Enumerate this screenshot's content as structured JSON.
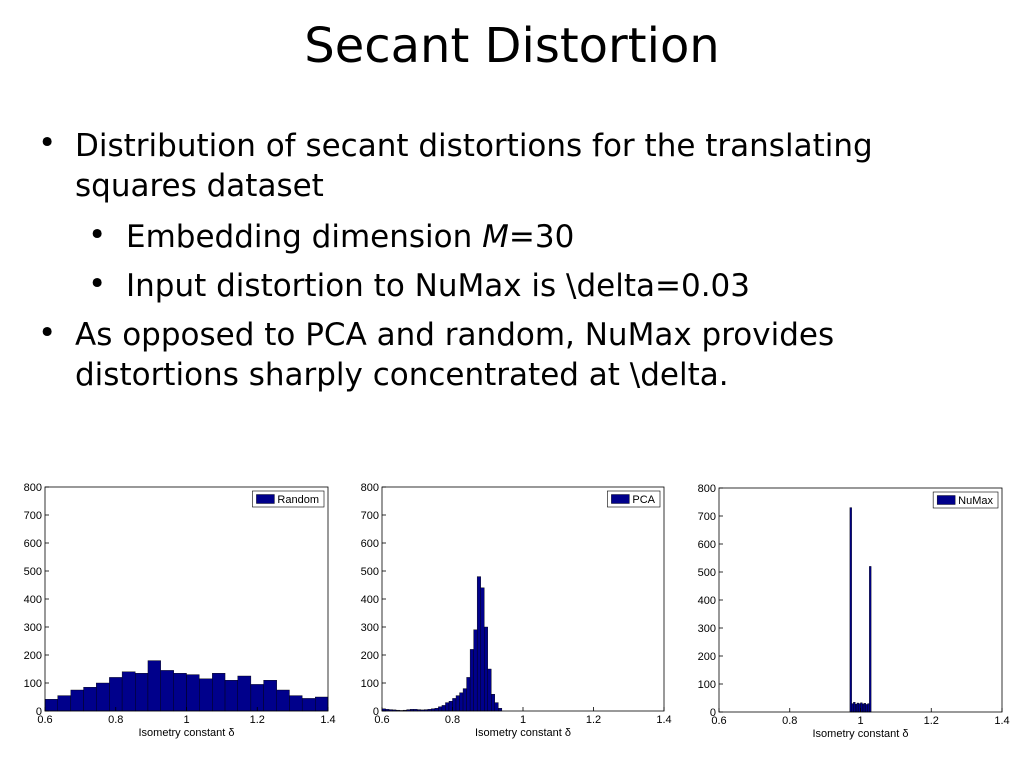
{
  "title": "Secant Distortion",
  "bullets": [
    {
      "text": "Distribution of secant distortions for the translating squares dataset",
      "sub": [
        {
          "parts": [
            "Embedding dimension ",
            "M",
            "=30"
          ]
        },
        {
          "parts": [
            "Input distortion to NuMax is \\delta=0.03"
          ]
        }
      ]
    },
    {
      "text": "As opposed to PCA and random, NuMax provides distortions sharply concentrated at \\delta."
    }
  ],
  "chart_data": [
    {
      "type": "histogram",
      "xlabel": "Isometry constant δ",
      "legend": "upper right",
      "xlim": [
        0.6,
        1.4
      ],
      "ylim": [
        0,
        800
      ],
      "xticks": [
        0.6,
        0.8,
        1,
        1.2,
        1.4
      ],
      "yticks": [
        0,
        100,
        200,
        300,
        400,
        500,
        600,
        700,
        800
      ],
      "bins": [
        0.6,
        0.636,
        0.673,
        0.709,
        0.745,
        0.782,
        0.818,
        0.855,
        0.891,
        0.927,
        0.964,
        1.0,
        1.036,
        1.073,
        1.109,
        1.145,
        1.182,
        1.218,
        1.255,
        1.291,
        1.327,
        1.364,
        1.4
      ],
      "series": [
        {
          "name": "Random",
          "color": "#00008b",
          "values": [
            42,
            55,
            75,
            85,
            100,
            120,
            140,
            135,
            180,
            145,
            135,
            130,
            115,
            135,
            110,
            125,
            95,
            110,
            75,
            55,
            45,
            50
          ]
        }
      ]
    },
    {
      "type": "histogram",
      "xlabel": "Isometry constant δ",
      "legend": "upper right",
      "xlim": [
        0.6,
        1.4
      ],
      "ylim": [
        0,
        800
      ],
      "xticks": [
        0.6,
        0.8,
        1,
        1.2,
        1.4
      ],
      "yticks": [
        0,
        100,
        200,
        300,
        400,
        500,
        600,
        700,
        800
      ],
      "bins": [
        0.6,
        0.61,
        0.62,
        0.63,
        0.64,
        0.65,
        0.66,
        0.67,
        0.68,
        0.69,
        0.7,
        0.71,
        0.72,
        0.73,
        0.74,
        0.75,
        0.76,
        0.77,
        0.78,
        0.79,
        0.8,
        0.81,
        0.82,
        0.83,
        0.84,
        0.85,
        0.86,
        0.87,
        0.88,
        0.89,
        0.9,
        0.91,
        0.92,
        0.93,
        0.94
      ],
      "series": [
        {
          "name": "PCA",
          "color": "#00008b",
          "values": [
            8,
            6,
            5,
            4,
            3,
            2,
            3,
            5,
            6,
            6,
            5,
            4,
            5,
            6,
            8,
            10,
            15,
            20,
            30,
            35,
            45,
            55,
            65,
            80,
            120,
            220,
            290,
            480,
            440,
            300,
            150,
            60,
            30,
            10
          ]
        }
      ]
    },
    {
      "type": "histogram",
      "xlabel": "Isometry constant δ",
      "legend": "upper right",
      "xlim": [
        0.6,
        1.4
      ],
      "ylim": [
        0,
        800
      ],
      "xticks": [
        0.6,
        0.8,
        1,
        1.2,
        1.4
      ],
      "yticks": [
        0,
        100,
        200,
        300,
        400,
        500,
        600,
        700,
        800
      ],
      "bins": [
        0.97,
        0.975,
        0.98,
        0.985,
        0.99,
        0.995,
        1.0,
        1.005,
        1.01,
        1.015,
        1.02,
        1.025,
        1.03
      ],
      "series": [
        {
          "name": "NuMax",
          "color": "#00008b",
          "values": [
            730,
            30,
            35,
            28,
            32,
            30,
            33,
            29,
            31,
            27,
            30,
            520
          ]
        }
      ]
    }
  ]
}
